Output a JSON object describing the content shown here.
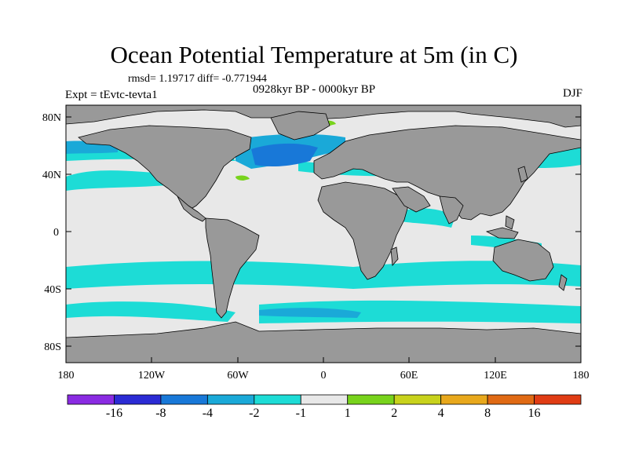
{
  "title": "Ocean Potential Temperature at 5m (in C)",
  "stats": "rmsd= 1.19717 diff= -0.771944",
  "experiment": "Expt = tEvtc-tevta1",
  "period": "0928kyr BP - 0000kyr BP",
  "season": "DJF",
  "y_ticks": [
    "80N",
    "40N",
    "0",
    "40S",
    "80S"
  ],
  "x_ticks": [
    "180",
    "120W",
    "60W",
    "0",
    "60E",
    "120E",
    "180"
  ],
  "colorbar": {
    "colors": [
      "#8a2be2",
      "#2b2bd4",
      "#1878d8",
      "#1aa9d8",
      "#1ddcd6",
      "#e8e8e8",
      "#78d31c",
      "#c8d21c",
      "#e8a81c",
      "#e06a14",
      "#e03c14"
    ],
    "labels": [
      "-16",
      "-8",
      "-4",
      "-2",
      "-1",
      "1",
      "2",
      "4",
      "8",
      "16"
    ]
  },
  "palette": {
    "land": "#999999",
    "neutral": "#e8e8e8",
    "cyan": "#1ddcd6",
    "lightblue": "#1aa9d8",
    "blue": "#1878d8",
    "green": "#78d31c"
  }
}
